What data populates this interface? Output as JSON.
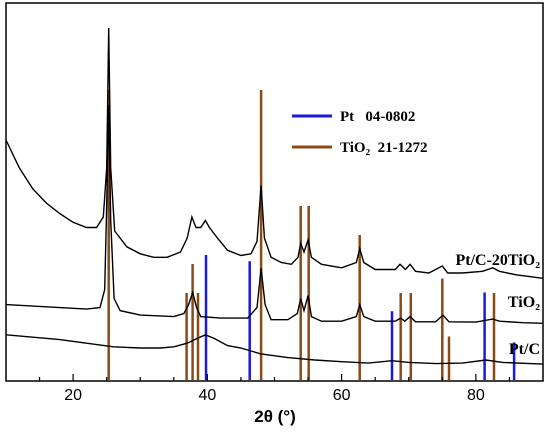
{
  "chart_data": {
    "type": "line",
    "title": "",
    "xlabel": "2θ (°)",
    "ylabel": "",
    "xlim": [
      10,
      90
    ],
    "x_ticks": [
      20,
      40,
      60,
      80
    ],
    "grid": false,
    "legend_position": "upper-right",
    "legend": [
      {
        "name": "Pt",
        "card": "04-0802",
        "color": "#1a1adb"
      },
      {
        "name": "TiO₂",
        "card": "21-1272",
        "color": "#8b4a16"
      }
    ],
    "series": [
      {
        "name": "Pt/C-20TiO₂",
        "label": "Pt/C-20TiO₂",
        "color": "#000000",
        "points": [
          [
            10,
            0.68
          ],
          [
            12,
            0.6
          ],
          [
            14,
            0.54
          ],
          [
            16,
            0.5
          ],
          [
            18,
            0.47
          ],
          [
            20,
            0.445
          ],
          [
            22,
            0.43
          ],
          [
            23.5,
            0.43
          ],
          [
            24.5,
            0.46
          ],
          [
            25,
            0.6
          ],
          [
            25.3,
            1.0
          ],
          [
            25.6,
            0.6
          ],
          [
            26.2,
            0.42
          ],
          [
            28,
            0.375
          ],
          [
            30,
            0.355
          ],
          [
            32,
            0.345
          ],
          [
            34,
            0.345
          ],
          [
            36,
            0.36
          ],
          [
            37,
            0.4
          ],
          [
            37.7,
            0.46
          ],
          [
            38.3,
            0.43
          ],
          [
            39,
            0.43
          ],
          [
            39.7,
            0.45
          ],
          [
            40.3,
            0.43
          ],
          [
            41.5,
            0.4
          ],
          [
            43,
            0.365
          ],
          [
            45,
            0.35
          ],
          [
            46.5,
            0.355
          ],
          [
            47.4,
            0.39
          ],
          [
            48,
            0.55
          ],
          [
            48.5,
            0.4
          ],
          [
            49.5,
            0.345
          ],
          [
            51,
            0.33
          ],
          [
            52.5,
            0.325
          ],
          [
            53.5,
            0.345
          ],
          [
            53.9,
            0.385
          ],
          [
            54.4,
            0.36
          ],
          [
            55,
            0.395
          ],
          [
            55.5,
            0.345
          ],
          [
            57,
            0.325
          ],
          [
            60,
            0.315
          ],
          [
            62.2,
            0.33
          ],
          [
            62.7,
            0.37
          ],
          [
            63.3,
            0.33
          ],
          [
            65,
            0.31
          ],
          [
            68,
            0.31
          ],
          [
            68.7,
            0.325
          ],
          [
            69.5,
            0.31
          ],
          [
            70.2,
            0.325
          ],
          [
            71,
            0.305
          ],
          [
            73,
            0.3
          ],
          [
            75,
            0.32
          ],
          [
            75.8,
            0.3
          ],
          [
            78,
            0.3
          ],
          [
            81,
            0.305
          ],
          [
            82.5,
            0.315
          ],
          [
            83.5,
            0.305
          ],
          [
            86,
            0.295
          ],
          [
            90,
            0.285
          ]
        ]
      },
      {
        "name": "TiO₂",
        "label": "TiO₂",
        "color": "#000000",
        "points": [
          [
            10,
            0.22
          ],
          [
            14,
            0.215
          ],
          [
            18,
            0.21
          ],
          [
            22,
            0.205
          ],
          [
            24,
            0.21
          ],
          [
            24.7,
            0.27
          ],
          [
            25,
            0.55
          ],
          [
            25.3,
            0.88
          ],
          [
            25.6,
            0.5
          ],
          [
            26.1,
            0.24
          ],
          [
            27,
            0.2
          ],
          [
            30,
            0.185
          ],
          [
            35,
            0.18
          ],
          [
            36.5,
            0.19
          ],
          [
            37.2,
            0.22
          ],
          [
            37.8,
            0.26
          ],
          [
            38.4,
            0.21
          ],
          [
            39,
            0.18
          ],
          [
            42,
            0.175
          ],
          [
            46,
            0.175
          ],
          [
            47.4,
            0.21
          ],
          [
            48,
            0.34
          ],
          [
            48.6,
            0.22
          ],
          [
            49.5,
            0.17
          ],
          [
            52,
            0.17
          ],
          [
            53.4,
            0.19
          ],
          [
            53.9,
            0.24
          ],
          [
            54.4,
            0.2
          ],
          [
            55,
            0.25
          ],
          [
            55.5,
            0.18
          ],
          [
            57,
            0.165
          ],
          [
            60,
            0.165
          ],
          [
            62.2,
            0.18
          ],
          [
            62.7,
            0.22
          ],
          [
            63.3,
            0.18
          ],
          [
            65,
            0.165
          ],
          [
            68,
            0.165
          ],
          [
            68.8,
            0.175
          ],
          [
            69.4,
            0.165
          ],
          [
            70.2,
            0.18
          ],
          [
            71,
            0.163
          ],
          [
            74,
            0.163
          ],
          [
            75.1,
            0.185
          ],
          [
            76,
            0.163
          ],
          [
            80,
            0.162
          ],
          [
            82.5,
            0.172
          ],
          [
            83.5,
            0.165
          ],
          [
            87,
            0.16
          ],
          [
            90,
            0.158
          ]
        ]
      },
      {
        "name": "Pt/C",
        "label": "Pt/C",
        "color": "#000000",
        "points": [
          [
            10,
            0.13
          ],
          [
            14,
            0.12
          ],
          [
            18,
            0.11
          ],
          [
            22,
            0.095
          ],
          [
            26,
            0.08
          ],
          [
            30,
            0.075
          ],
          [
            33,
            0.075
          ],
          [
            35,
            0.08
          ],
          [
            37,
            0.095
          ],
          [
            38.5,
            0.115
          ],
          [
            39.7,
            0.13
          ],
          [
            41,
            0.115
          ],
          [
            43,
            0.085
          ],
          [
            45,
            0.075
          ],
          [
            48,
            0.05
          ],
          [
            52,
            0.035
          ],
          [
            56,
            0.025
          ],
          [
            60,
            0.018
          ],
          [
            64,
            0.012
          ],
          [
            67.5,
            0.022
          ],
          [
            70,
            0.015
          ],
          [
            74,
            0.01
          ],
          [
            78,
            0.012
          ],
          [
            81.5,
            0.025
          ],
          [
            84,
            0.015
          ],
          [
            88,
            0.01
          ],
          [
            90,
            0.008
          ]
        ]
      }
    ],
    "reference_lines": {
      "Pt": {
        "color": "#1a1adb",
        "peaks": [
          [
            39.8,
            1.0
          ],
          [
            46.3,
            0.95
          ],
          [
            67.5,
            0.55
          ],
          [
            81.3,
            0.7
          ],
          [
            85.7,
            0.3
          ]
        ]
      },
      "TiO2": {
        "color": "#8b4a16",
        "peaks": [
          [
            25.3,
            1.0
          ],
          [
            36.9,
            0.3
          ],
          [
            37.8,
            0.4
          ],
          [
            38.6,
            0.3
          ],
          [
            48.0,
            1.0
          ],
          [
            53.9,
            0.6
          ],
          [
            55.1,
            0.6
          ],
          [
            62.7,
            0.5
          ],
          [
            68.8,
            0.3
          ],
          [
            70.3,
            0.3
          ],
          [
            75.0,
            0.35
          ],
          [
            76.0,
            0.15
          ],
          [
            82.7,
            0.3
          ]
        ]
      }
    }
  },
  "labels": {
    "series_1": "Pt/C-20TiO₂",
    "series_2": "TiO₂",
    "series_3": "Pt/C",
    "legend_pt": "Pt   04-0802",
    "legend_tio2": "TiO₂  21-1272"
  }
}
